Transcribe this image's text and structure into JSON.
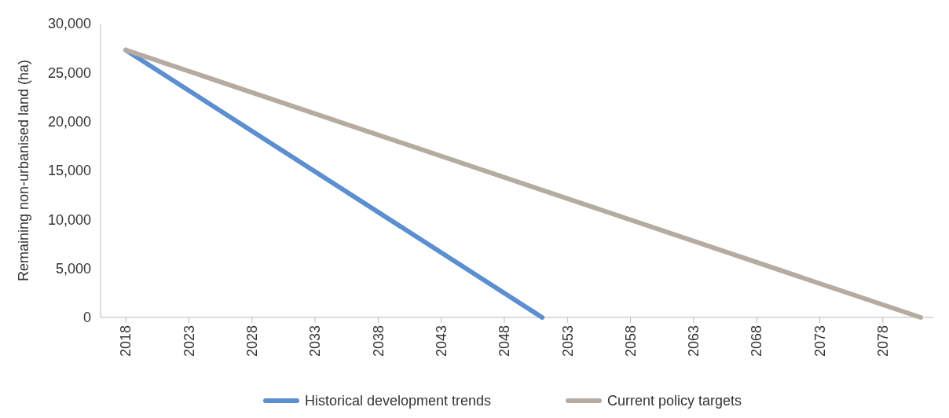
{
  "chart_data": {
    "type": "line",
    "ylabel": "Remaining non-urbanised land (ha)",
    "xlim": [
      2016,
      2082
    ],
    "xticks": [
      2018,
      2023,
      2028,
      2033,
      2038,
      2043,
      2048,
      2053,
      2058,
      2063,
      2068,
      2073,
      2078
    ],
    "ylim": [
      0,
      30000
    ],
    "yticks": [
      {
        "value": 0,
        "label": "0"
      },
      {
        "value": 5000,
        "label": "5,000"
      },
      {
        "value": 10000,
        "label": "10,000"
      },
      {
        "value": 15000,
        "label": "15,000"
      },
      {
        "value": 20000,
        "label": "20,000"
      },
      {
        "value": 25000,
        "label": "25,000"
      },
      {
        "value": 30000,
        "label": "30,000"
      }
    ],
    "series": [
      {
        "name": "Historical development trends",
        "color": "#5b8fcf",
        "x": [
          2018,
          2051
        ],
        "values": [
          27300,
          0
        ]
      },
      {
        "name": "Current policy targets",
        "color": "#b5aba0",
        "x": [
          2018,
          2081
        ],
        "values": [
          27300,
          0
        ]
      }
    ],
    "grid": false,
    "legend": "bottom",
    "marker": "none",
    "line_style": "solid"
  }
}
